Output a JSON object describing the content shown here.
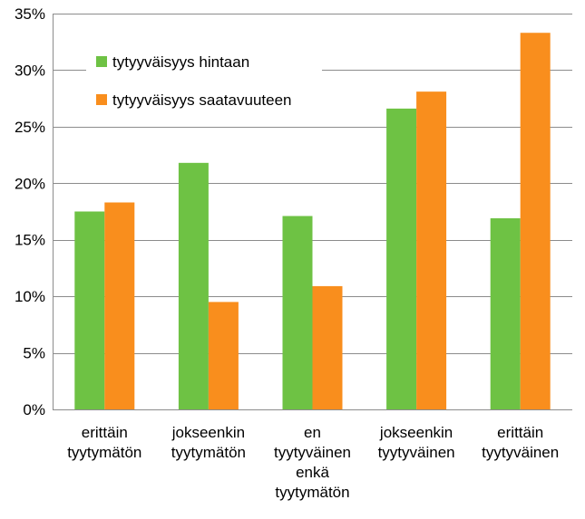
{
  "chart_data": {
    "type": "bar",
    "title": "",
    "xlabel": "",
    "ylabel": "",
    "categories": [
      [
        "erittäin",
        "tyytymätön"
      ],
      [
        "jokseenkin",
        "tyytymätön"
      ],
      [
        "en",
        "tyytyväinen",
        "enkä",
        "tyytymätön"
      ],
      [
        "jokseenkin",
        "tyytyväinen"
      ],
      [
        "erittäin",
        "tyytyväinen"
      ]
    ],
    "series": [
      {
        "name": "tytyyväisyys hintaan",
        "color": "#6ec244",
        "values": [
          17.5,
          21.8,
          17.1,
          26.6,
          16.9
        ]
      },
      {
        "name": "tytyyväisyys saatavuuteen",
        "color": "#f98e1d",
        "values": [
          18.3,
          9.5,
          10.9,
          28.1,
          33.3
        ]
      }
    ],
    "ylim": [
      0,
      35
    ],
    "yticks": [
      0,
      5,
      10,
      15,
      20,
      25,
      30,
      35
    ],
    "ytick_labels": [
      "0%",
      "5%",
      "10%",
      "15%",
      "20%",
      "25%",
      "30%",
      "35%"
    ],
    "grid": true,
    "legend_position": "top-left"
  }
}
